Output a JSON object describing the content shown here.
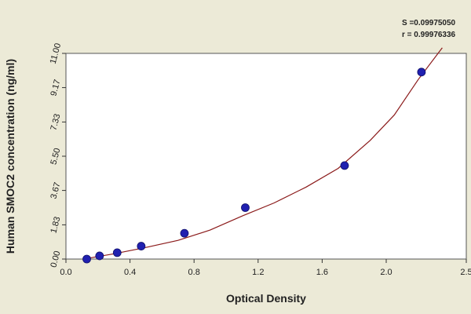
{
  "chart_data": {
    "type": "scatter",
    "title": "",
    "xlabel": "Optical Density",
    "ylabel": "Human SMOC2 concentration (ng/ml)",
    "xlim": [
      0.0,
      2.5
    ],
    "ylim": [
      0.0,
      11.0
    ],
    "x_ticks": [
      0.0,
      0.4,
      0.8,
      1.2,
      1.6,
      2.0,
      2.5
    ],
    "x_tick_labels": [
      "0.0",
      "0.4",
      "0.8",
      "1.2",
      "1.6",
      "2.0",
      "2.5"
    ],
    "y_ticks": [
      0.0,
      1.83,
      3.67,
      5.5,
      7.33,
      9.17,
      11.0
    ],
    "y_tick_labels": [
      "0.00",
      "1.83",
      "3.67",
      "5.50",
      "7.33",
      "9.17",
      "11.00"
    ],
    "grid": false,
    "series": [
      {
        "type": "scatter",
        "x": [
          0.13,
          0.21,
          0.32,
          0.47,
          0.74,
          1.12,
          1.74,
          2.22
        ],
        "y": [
          0.0,
          0.17,
          0.34,
          0.69,
          1.38,
          2.75,
          5.0,
          10.0
        ]
      },
      {
        "type": "line",
        "x": [
          0.13,
          0.3,
          0.5,
          0.7,
          0.9,
          1.1,
          1.3,
          1.5,
          1.7,
          1.9,
          2.05,
          2.2,
          2.35
        ],
        "y": [
          0.03,
          0.28,
          0.62,
          1.0,
          1.55,
          2.3,
          3.0,
          3.85,
          4.85,
          6.35,
          7.7,
          9.6,
          11.3
        ]
      }
    ],
    "annotations": [
      "S =0.09975050",
      "r = 0.99976336"
    ],
    "colors": {
      "background": "#ecead7",
      "plot_area": "#ffffff",
      "points": "#2020b0",
      "curve": "#8b1a1a"
    }
  }
}
